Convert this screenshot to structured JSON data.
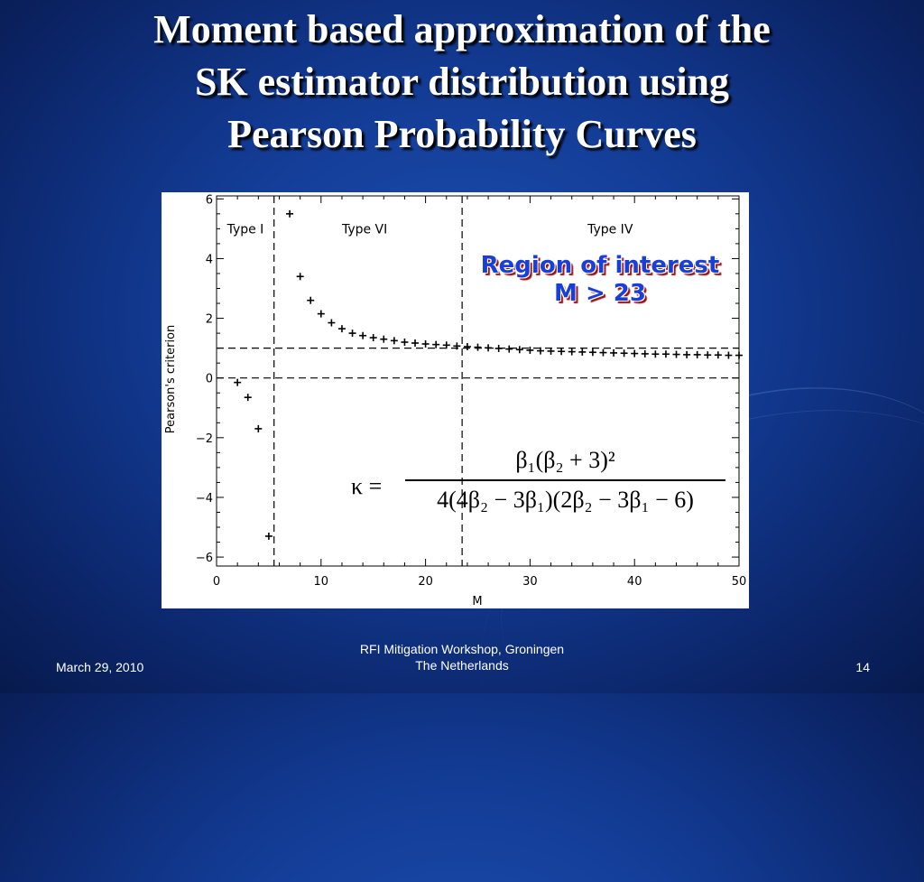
{
  "slide": {
    "title_lines": [
      "Moment based approximation of the",
      "SK estimator distribution using",
      "Pearson Probability Curves"
    ],
    "footer_date": "March 29, 2010",
    "footer_center_line1": "RFI Mitigation Workshop, Groningen",
    "footer_center_line2": "The Netherlands",
    "page_number": "14"
  },
  "annotation": {
    "region_line1": "Region of interest",
    "region_line2": "M > 23",
    "formula_lhs": "κ =",
    "formula_numerator": "β₁(β₂ + 3)²",
    "formula_denominator": "4(4β₂ − 3β₁)(2β₂ − 3β₁ − 6)"
  },
  "chart_data": {
    "type": "scatter",
    "xlabel": "M",
    "ylabel": "Pearson's criterion",
    "xlim": [
      0,
      50
    ],
    "ylim": [
      -6.3,
      6.1
    ],
    "xticks": [
      "0",
      "10",
      "20",
      "30",
      "40",
      "50"
    ],
    "yticks": [
      "−6",
      "−4",
      "−2",
      "0",
      "2",
      "4",
      "6"
    ],
    "marker": "+",
    "regions": [
      "Type I",
      "Type VI",
      "Type IV"
    ],
    "vertical_lines_x": [
      5.5,
      23.5
    ],
    "horizontal_lines_y": [
      0,
      1
    ],
    "x": [
      2,
      3,
      4,
      5,
      7,
      8,
      9,
      10,
      11,
      12,
      13,
      14,
      15,
      16,
      17,
      18,
      19,
      20,
      21,
      22,
      23,
      24,
      25,
      26,
      27,
      28,
      29,
      30,
      31,
      32,
      33,
      34,
      35,
      36,
      37,
      38,
      39,
      40,
      41,
      42,
      43,
      44,
      45,
      46,
      47,
      48,
      49,
      50
    ],
    "y": [
      -0.15,
      -0.65,
      -1.7,
      -5.3,
      5.5,
      3.4,
      2.6,
      2.15,
      1.85,
      1.65,
      1.5,
      1.42,
      1.35,
      1.3,
      1.25,
      1.2,
      1.17,
      1.14,
      1.12,
      1.1,
      1.07,
      1.05,
      1.03,
      1.01,
      0.99,
      0.97,
      0.95,
      0.93,
      0.91,
      0.9,
      0.89,
      0.88,
      0.87,
      0.86,
      0.85,
      0.84,
      0.83,
      0.82,
      0.81,
      0.8,
      0.8,
      0.79,
      0.78,
      0.78,
      0.77,
      0.77,
      0.76,
      0.76
    ]
  }
}
